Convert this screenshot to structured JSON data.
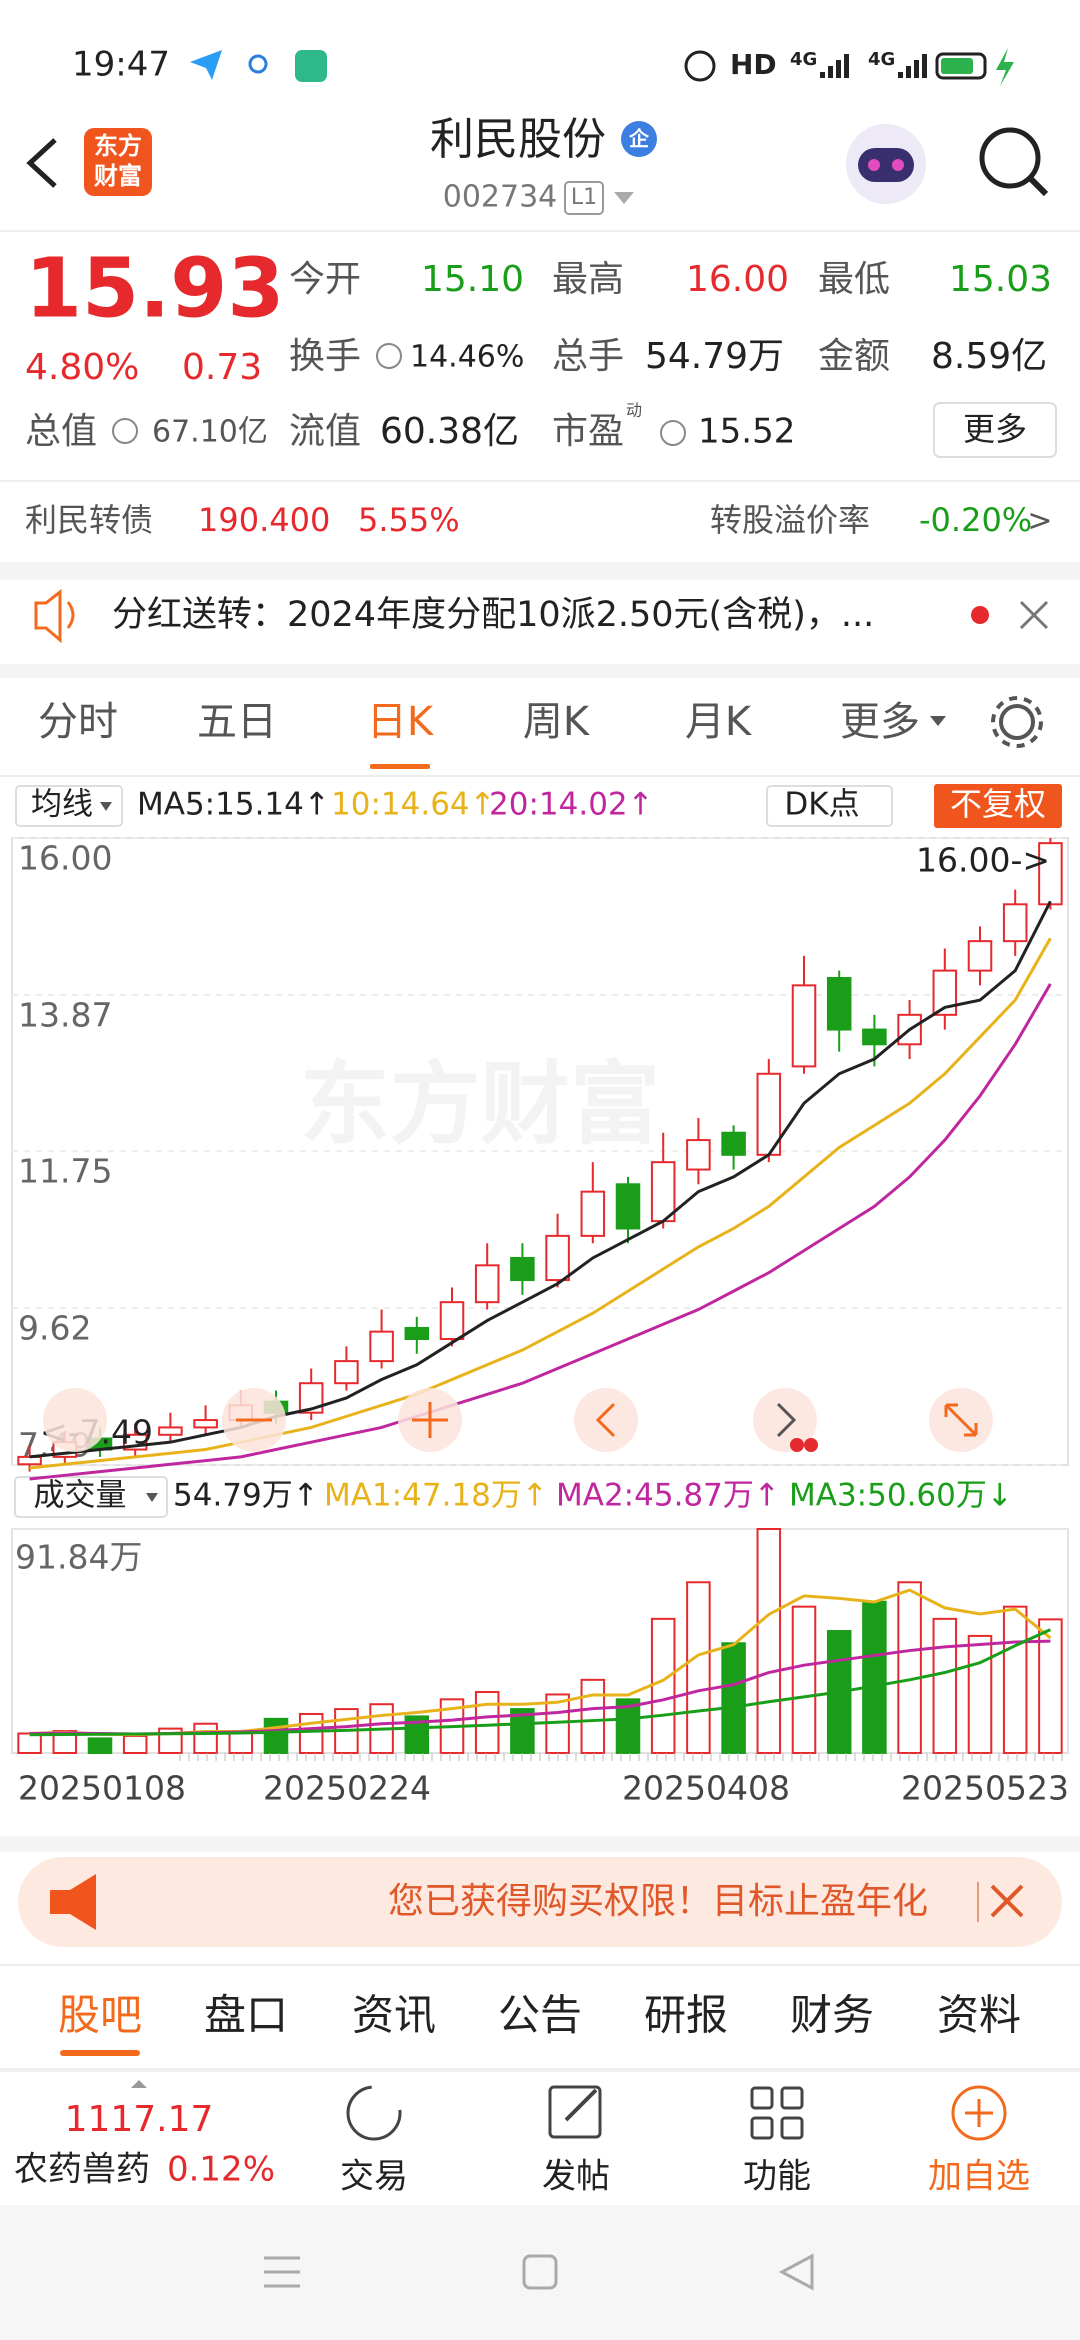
{
  "status_bar": {
    "time": "19:47",
    "network": "HD",
    "sim1": "4G",
    "sim2": "4G"
  },
  "header": {
    "logo_lines": [
      "东方",
      "财富"
    ],
    "title": "利民股份",
    "badge": "企",
    "code": "002734",
    "level": "L1"
  },
  "quote": {
    "price": "15.93",
    "change_pct": "4.80%",
    "change": "0.73",
    "total_value": {
      "label": "总值",
      "value": "67.10亿"
    },
    "stats": [
      {
        "label": "今开",
        "value": "15.10"
      },
      {
        "label": "最高",
        "value": "16.00"
      },
      {
        "label": "最低",
        "value": "15.03"
      },
      {
        "label": "换手",
        "value": "14.46%"
      },
      {
        "label": "总手",
        "value": "54.79万"
      },
      {
        "label": "金额",
        "value": "8.59亿"
      },
      {
        "label": "流值",
        "value": "60.38亿"
      },
      {
        "label": "市盈",
        "value": "15.52",
        "sup": "动"
      }
    ],
    "more": "更多"
  },
  "bond": {
    "name": "利民转债",
    "price": "190.400",
    "change": "5.55%",
    "premium_label": "转股溢价率",
    "premium": "-0.20%",
    "arrow": ">"
  },
  "notice": "分红送转：2024年度分配10派2.50元(含税)，...",
  "tabs": {
    "items": [
      "分时",
      "五日",
      "日K",
      "周K",
      "月K",
      "更多"
    ],
    "active": 2
  },
  "chart_data": [
    {
      "type": "candlestick",
      "legend_button": "均线",
      "dk_button": "DK点",
      "adjust_button": "不复权",
      "watermark": "东方财富",
      "max_label": "16.00->",
      "min_label": "<-7.49",
      "up_color": "#e6292c",
      "down_color": "#1a9e1a",
      "ylim": [
        7.49,
        16.0
      ],
      "yticks": [
        {
          "value": 16.0,
          "label": "16.00"
        },
        13.87,
        11.75,
        9.62,
        7.49
      ],
      "grid": true,
      "open": [
        7.5,
        7.6,
        7.85,
        7.7,
        7.9,
        8.0,
        8.1,
        8.35,
        8.2,
        8.6,
        8.9,
        9.35,
        9.2,
        9.7,
        10.3,
        10.0,
        10.6,
        11.3,
        10.8,
        11.5,
        12.0,
        11.7,
        12.9,
        14.1,
        13.4,
        13.2,
        13.6,
        14.2,
        14.6,
        15.1
      ],
      "close": [
        7.6,
        7.8,
        7.7,
        7.9,
        8.0,
        8.1,
        8.3,
        8.2,
        8.6,
        8.9,
        9.3,
        9.2,
        9.7,
        10.2,
        10.0,
        10.6,
        11.2,
        10.7,
        11.6,
        11.9,
        11.7,
        12.8,
        14.0,
        13.4,
        13.2,
        13.6,
        14.2,
        14.6,
        15.1,
        15.93
      ],
      "high": [
        7.75,
        7.95,
        8.0,
        8.05,
        8.2,
        8.3,
        8.5,
        8.5,
        8.8,
        9.1,
        9.6,
        9.5,
        9.9,
        10.5,
        10.5,
        10.9,
        11.6,
        11.4,
        12.0,
        12.2,
        12.1,
        13.0,
        14.4,
        14.2,
        13.6,
        13.8,
        14.5,
        14.8,
        15.3,
        16.0
      ],
      "low": [
        7.4,
        7.5,
        7.6,
        7.6,
        7.8,
        7.9,
        8.0,
        8.05,
        8.1,
        8.5,
        8.8,
        9.0,
        9.1,
        9.6,
        9.8,
        9.9,
        10.5,
        10.5,
        10.7,
        11.3,
        11.5,
        11.6,
        12.8,
        13.1,
        12.9,
        13.0,
        13.4,
        14.0,
        14.4,
        15.03
      ],
      "series": [
        {
          "name": "MA5:15.14↑",
          "color": "#222222",
          "values": [
            7.6,
            7.65,
            7.7,
            7.75,
            7.8,
            7.9,
            8.0,
            8.15,
            8.25,
            8.4,
            8.65,
            8.85,
            9.15,
            9.45,
            9.7,
            9.95,
            10.3,
            10.55,
            10.8,
            11.2,
            11.4,
            11.7,
            12.4,
            12.8,
            13.0,
            13.4,
            13.7,
            13.8,
            14.2,
            15.14
          ]
        },
        {
          "name": "10:14.64↑",
          "color": "#e8b21a",
          "values": [
            7.45,
            7.5,
            7.55,
            7.6,
            7.65,
            7.7,
            7.8,
            7.9,
            8.0,
            8.15,
            8.3,
            8.45,
            8.65,
            8.85,
            9.05,
            9.3,
            9.55,
            9.85,
            10.15,
            10.45,
            10.7,
            11.0,
            11.4,
            11.8,
            12.1,
            12.4,
            12.8,
            13.3,
            13.8,
            14.64
          ]
        },
        {
          "name": "20:14.02↑",
          "color": "#c0279f",
          "values": [
            7.3,
            7.35,
            7.4,
            7.45,
            7.5,
            7.55,
            7.6,
            7.7,
            7.8,
            7.9,
            8.0,
            8.15,
            8.3,
            8.45,
            8.6,
            8.8,
            9.0,
            9.2,
            9.4,
            9.6,
            9.85,
            10.1,
            10.4,
            10.7,
            11.0,
            11.4,
            11.9,
            12.5,
            13.2,
            14.02
          ]
        }
      ]
    },
    {
      "type": "bar",
      "legend_button": "成交量",
      "current": "54.79万↑",
      "ylim": [
        0,
        91.84
      ],
      "yticks": [
        {
          "value": 91.84,
          "label": "91.84万"
        }
      ],
      "values": [
        8,
        9,
        6,
        7,
        10,
        12,
        9,
        14,
        16,
        18,
        20,
        15,
        22,
        25,
        18,
        24,
        30,
        22,
        55,
        70,
        45,
        91.84,
        60,
        50,
        62,
        70,
        55,
        48,
        60,
        54.79
      ],
      "x_labels": [
        "20250108",
        "20250224",
        "20250408",
        "20250523"
      ],
      "series": [
        {
          "name": "MA1:47.18万↑",
          "color": "#e8b21a",
          "values": [
            8,
            8.5,
            7.7,
            7.5,
            8,
            8.8,
            8.8,
            10.4,
            12.2,
            13.8,
            15.4,
            16.6,
            18.2,
            20,
            20,
            20.8,
            23.8,
            23.8,
            29.8,
            40.2,
            44.4,
            56.8,
            64.4,
            63.4,
            61.9,
            66.8,
            59.5,
            57,
            59,
            47.18
          ]
        },
        {
          "name": "MA2:45.87万↑",
          "color": "#c0279f",
          "values": [
            8,
            8.2,
            8,
            7.8,
            8,
            8.3,
            8.6,
            9.2,
            10,
            10.8,
            12,
            12.6,
            13.5,
            14.8,
            15.6,
            16.6,
            18.2,
            19,
            21.8,
            25.5,
            28,
            33,
            36,
            38,
            40,
            42,
            43.5,
            44.5,
            45.5,
            45.87
          ]
        },
        {
          "name": "MA3:50.60万↓",
          "color": "#1a9e1a",
          "values": [
            7.5,
            7.6,
            7.7,
            7.8,
            7.9,
            8,
            8.2,
            8.5,
            8.9,
            9.3,
            9.8,
            10.3,
            10.8,
            11.4,
            12,
            12.6,
            13.3,
            14,
            15.5,
            17.2,
            18.8,
            21,
            23,
            25,
            27.5,
            30,
            33,
            37,
            44,
            50.6
          ]
        }
      ]
    }
  ],
  "ad": "您已获得购买权限！目标止盈年化",
  "bottom_tabs": {
    "items": [
      "股吧",
      "盘口",
      "资讯",
      "公告",
      "研报",
      "财务",
      "资料"
    ],
    "active": 0
  },
  "bottom_nav": {
    "index_value": "1117.17",
    "index_name": "农药兽药",
    "index_change": "0.12%",
    "items": [
      "交易",
      "发帖",
      "功能",
      "加自选"
    ]
  }
}
